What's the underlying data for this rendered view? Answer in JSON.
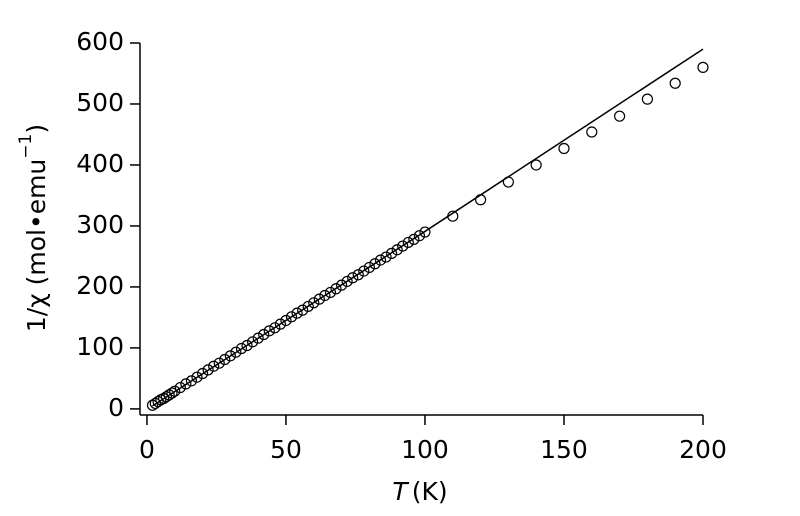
{
  "chart_data": {
    "type": "scatter",
    "x_label": {
      "symbol": "T",
      "unit": "(K)"
    },
    "y_label": {
      "text": "1/χ (mol•emu",
      "superscript": "−1",
      "close": ")"
    },
    "xlim": [
      -2.5,
      200
    ],
    "ylim": [
      -10,
      600
    ],
    "xticks": [
      0,
      50,
      100,
      150,
      200
    ],
    "yticks": [
      0,
      100,
      200,
      300,
      400,
      500,
      600
    ],
    "series": [
      {
        "color": "#000000",
        "marker": "circle",
        "x": [
          2,
          3,
          4,
          5,
          6,
          7,
          8,
          9,
          10,
          12,
          14,
          16,
          18,
          20,
          22,
          24,
          26,
          28,
          30,
          32,
          34,
          36,
          38,
          40,
          42,
          44,
          46,
          48,
          50,
          52,
          54,
          56,
          58,
          60,
          62,
          64,
          66,
          68,
          70,
          72,
          74,
          76,
          78,
          80,
          82,
          84,
          86,
          88,
          90,
          92,
          94,
          96,
          98,
          100,
          110,
          120,
          130,
          140,
          150,
          160,
          170,
          180,
          190,
          200
        ],
        "values": [
          6,
          9,
          12,
          15,
          17,
          20,
          23,
          26,
          29,
          35,
          41,
          46,
          52,
          58,
          64,
          70,
          75,
          81,
          87,
          93,
          99,
          104,
          110,
          116,
          122,
          128,
          133,
          139,
          145,
          151,
          157,
          162,
          168,
          174,
          180,
          186,
          191,
          197,
          203,
          209,
          215,
          220,
          226,
          232,
          238,
          244,
          249,
          255,
          261,
          267,
          273,
          278,
          284,
          290,
          316,
          343,
          372,
          400,
          427,
          454,
          480,
          508,
          534,
          560
        ]
      },
      {
        "color": "#000000",
        "marker": "line",
        "x": [
          2,
          100,
          200
        ],
        "values": [
          5,
          291,
          590
        ]
      }
    ]
  }
}
